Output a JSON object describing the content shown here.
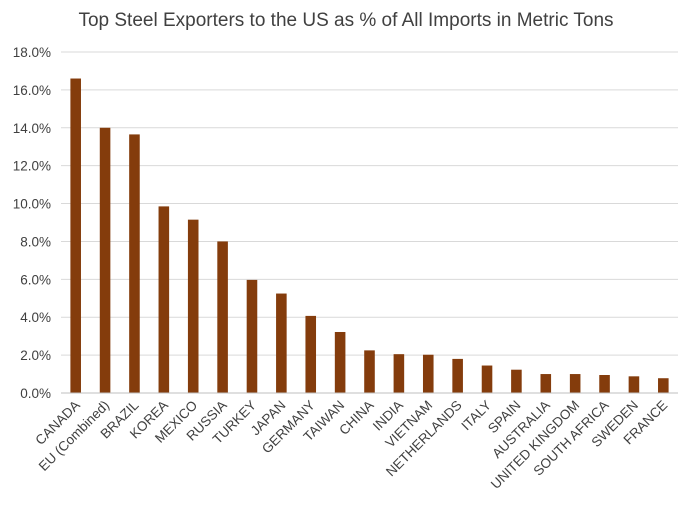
{
  "chart_data": {
    "type": "bar",
    "title": "Top Steel Exporters to the US as % of All Imports in Metric Tons",
    "xlabel": "",
    "ylabel": "",
    "categories": [
      "CANADA",
      "EU (Combined)",
      "BRAZIL",
      "KOREA",
      "MEXICO",
      "RUSSIA",
      "TURKEY",
      "JAPAN",
      "GERMANY",
      "TAIWAN",
      "CHINA",
      "INDIA",
      "VIETNAM",
      "NETHERLANDS",
      "ITALY",
      "SPAIN",
      "AUSTRALIA",
      "UNITED KINGDOM",
      "SOUTH AFRICA",
      "SWEDEN",
      "FRANCE"
    ],
    "values": [
      16.6,
      14.0,
      13.65,
      9.85,
      9.15,
      8.0,
      5.97,
      5.25,
      4.07,
      3.22,
      2.25,
      2.05,
      2.02,
      1.8,
      1.45,
      1.23,
      1.0,
      1.0,
      0.95,
      0.88,
      0.78
    ],
    "ylim": [
      0,
      18
    ],
    "yticks": [
      0,
      2,
      4,
      6,
      8,
      10,
      12,
      14,
      16,
      18
    ],
    "ytick_labels": [
      "0.0%",
      "2.0%",
      "4.0%",
      "6.0%",
      "8.0%",
      "10.0%",
      "12.0%",
      "14.0%",
      "16.0%",
      "18.0%"
    ],
    "grid": true,
    "legend": "none",
    "bar_color": "#843C0C"
  }
}
